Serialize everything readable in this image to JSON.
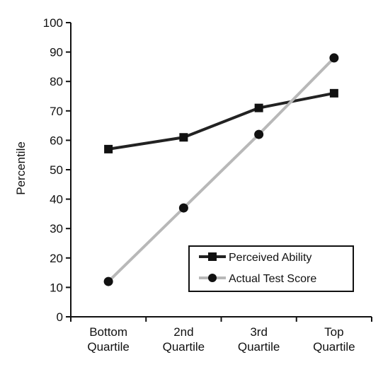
{
  "chart_data": {
    "type": "line",
    "categories": [
      [
        "Bottom",
        "Quartile"
      ],
      [
        "2nd",
        "Quartile"
      ],
      [
        "3rd",
        "Quartile"
      ],
      [
        "Top",
        "Quartile"
      ]
    ],
    "ylabel": "Percentile",
    "ylim": [
      0,
      100
    ],
    "yticks": [
      0,
      10,
      20,
      30,
      40,
      50,
      60,
      70,
      80,
      90,
      100
    ],
    "grid": false,
    "legend_position": "bottom-right",
    "series": [
      {
        "name": "Perceived Ability",
        "values": [
          57,
          61,
          71,
          76
        ],
        "marker": "square",
        "color": "#222222",
        "line_style": "solid"
      },
      {
        "name": "Actual Test Score",
        "values": [
          12,
          37,
          62,
          88
        ],
        "marker": "circle",
        "color": "#b8b8b8",
        "line_style": "solid"
      }
    ]
  }
}
